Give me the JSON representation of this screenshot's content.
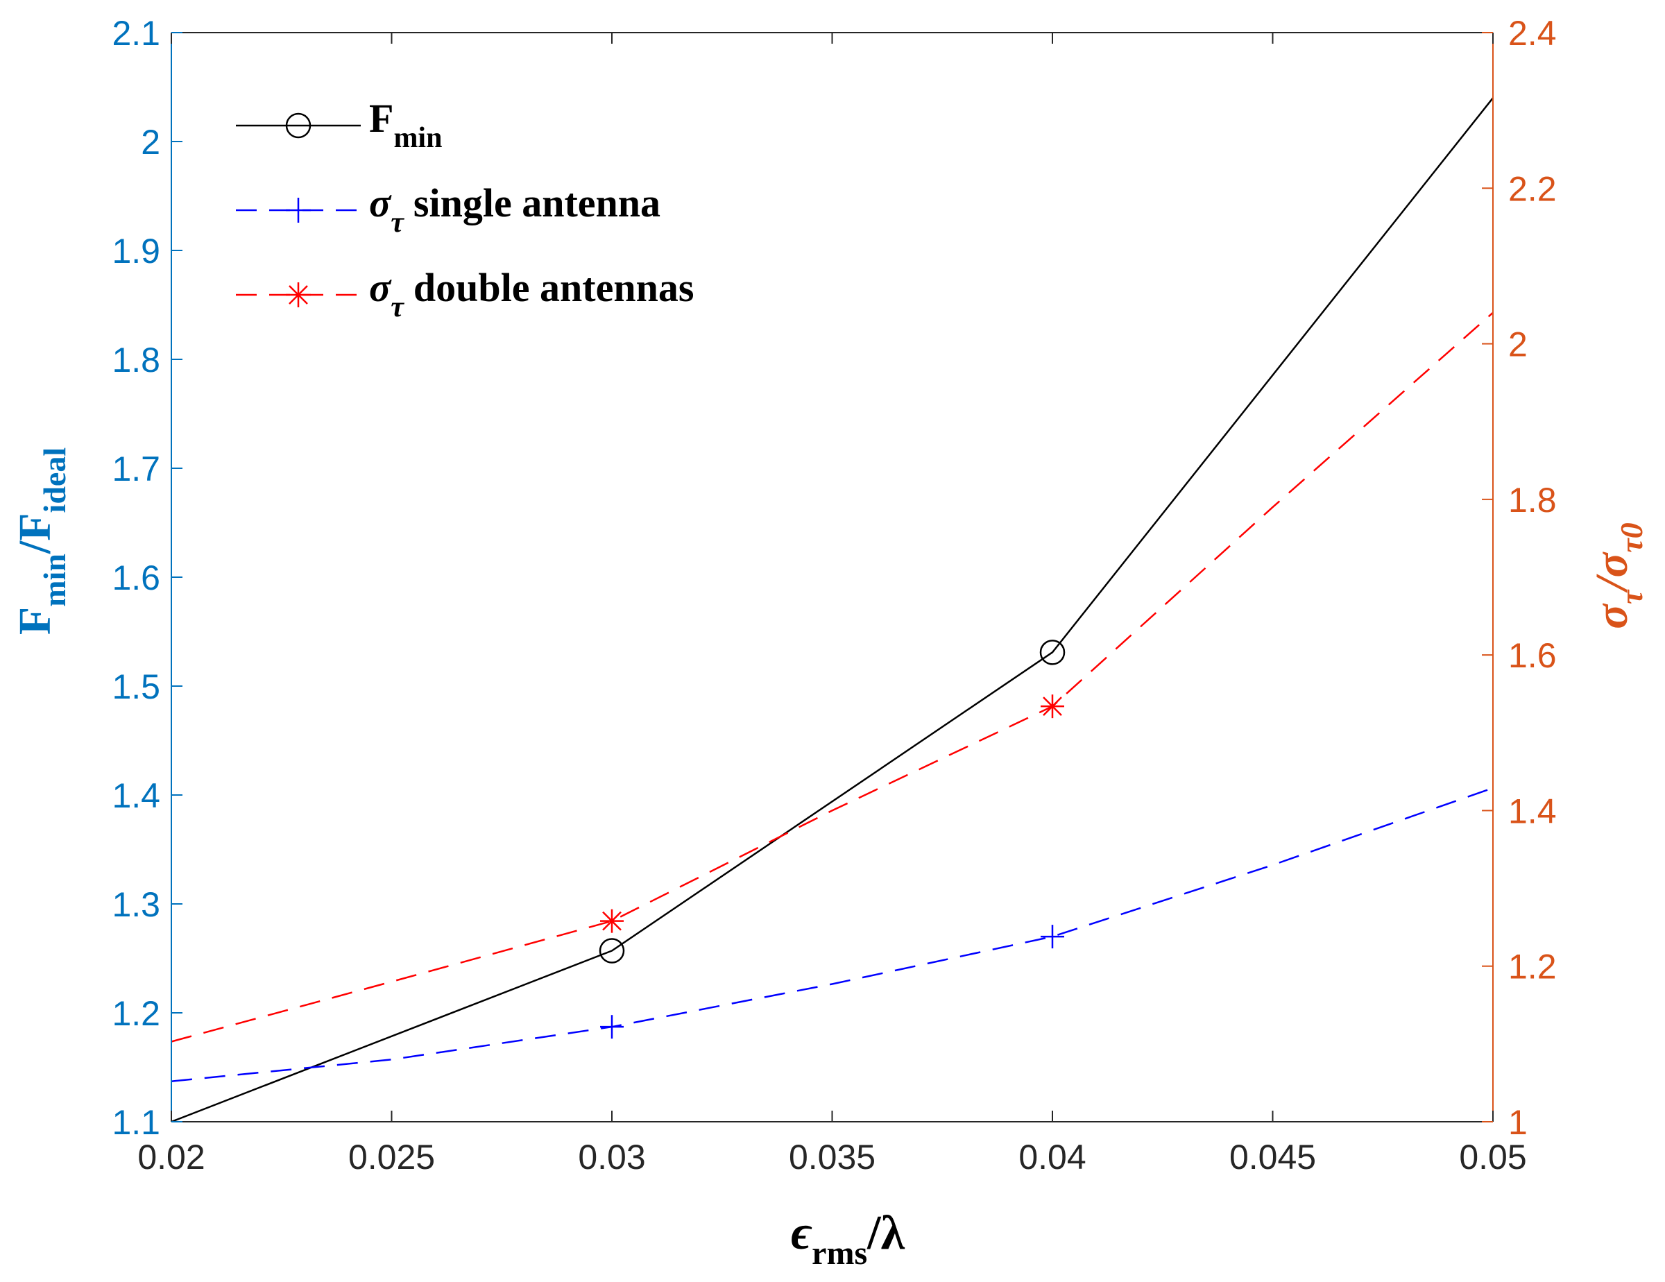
{
  "chart_data": {
    "type": "line",
    "x": [
      0.02,
      0.03,
      0.04,
      0.05
    ],
    "xlim": [
      0.02,
      0.05
    ],
    "xticks": [
      "0.02",
      "0.025",
      "0.03",
      "0.035",
      "0.04",
      "0.045",
      "0.05"
    ],
    "xlabel": {
      "main": "ϵ",
      "sub": "rms",
      "tail": "/λ"
    },
    "ylim_left": [
      1.1,
      2.1
    ],
    "yticks_left": [
      "1.1",
      "1.2",
      "1.3",
      "1.4",
      "1.5",
      "1.6",
      "1.7",
      "1.8",
      "1.9",
      "2",
      "2.1"
    ],
    "ylabel_left": {
      "a": "F",
      "a_sub": "min",
      "b": "/F",
      "b_sub": "ideal"
    },
    "ylim_right": [
      1.0,
      2.4
    ],
    "yticks_right": [
      "1",
      "1.2",
      "1.4",
      "1.6",
      "1.8",
      "2",
      "2.2",
      "2.4"
    ],
    "ylabel_right": {
      "a": "σ",
      "a_sub": "τ",
      "b": "/σ",
      "b_sub": "τ0"
    },
    "colors": {
      "left_axis": "#0072BD",
      "right_axis": "#D95319",
      "fmin": "#000000",
      "single": "#0000FF",
      "double": "#FF0000"
    },
    "series": [
      {
        "name": "F_min",
        "axis": "left",
        "style": "solid",
        "marker": "circle",
        "color": "#000000",
        "values": [
          1.1,
          1.257,
          1.531,
          2.04
        ],
        "marker_x": [
          0.03,
          0.04
        ],
        "marker_values": [
          1.257,
          1.531
        ],
        "legend": {
          "main": "F",
          "sub": "min",
          "rest": ""
        }
      },
      {
        "name": "sigma_tau single antenna",
        "axis": "right",
        "style": "dashed",
        "marker": "plus",
        "color": "#0000FF",
        "curve_x": [
          0.02,
          0.025,
          0.03,
          0.035,
          0.04,
          0.045,
          0.05
        ],
        "curve_values": [
          1.052,
          1.08,
          1.122,
          1.177,
          1.238,
          1.33,
          1.429
        ],
        "marker_x": [
          0.03,
          0.04
        ],
        "marker_values": [
          1.122,
          1.238
        ],
        "legend": {
          "main": "σ",
          "sub": "τ",
          "rest": "single antenna"
        }
      },
      {
        "name": "sigma_tau double antennas",
        "axis": "right",
        "style": "dashed",
        "marker": "asterisk",
        "color": "#FF0000",
        "curve_x": [
          0.02,
          0.025,
          0.03,
          0.035,
          0.04,
          0.045,
          0.05
        ],
        "curve_values": [
          1.103,
          1.18,
          1.258,
          1.4,
          1.534,
          1.79,
          2.04
        ],
        "marker_x": [
          0.03,
          0.04
        ],
        "marker_values": [
          1.258,
          1.534
        ],
        "legend": {
          "main": "σ",
          "sub": "τ",
          "rest": "double antennas"
        }
      }
    ]
  }
}
